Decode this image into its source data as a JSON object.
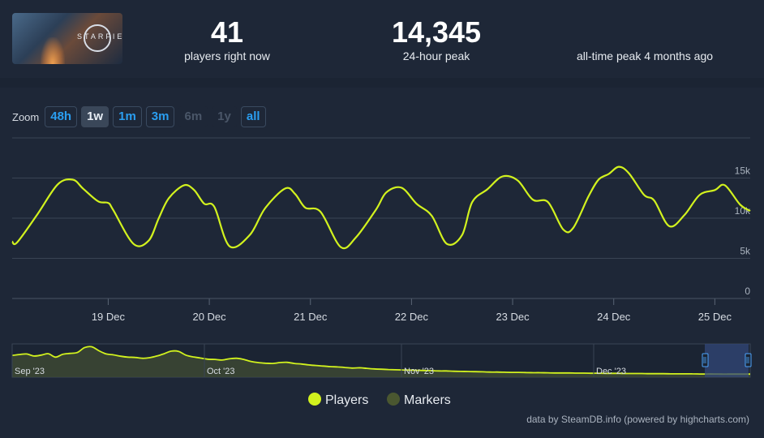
{
  "stats": {
    "now_value": "41",
    "now_label": "players right now",
    "peak24_value": "14,345",
    "peak24_label": "24-hour peak",
    "alltime_label": "all-time peak 4 months ago"
  },
  "game_thumbnail": {
    "brand": "STARFIELD"
  },
  "zoom": {
    "label": "Zoom",
    "buttons": [
      "48h",
      "1w",
      "1m",
      "3m",
      "6m",
      "1y",
      "all"
    ],
    "active": "1w",
    "disabled": [
      "6m",
      "1y"
    ]
  },
  "legend": {
    "players": "Players",
    "markers": "Markers"
  },
  "credit": "data by SteamDB.info (powered by highcharts.com)",
  "colors": {
    "players": "#d2f21e",
    "markers": "#4a5730",
    "navigator_fill": "#3f4a33",
    "selection": "#33477a"
  },
  "chart_data": {
    "type": "line",
    "series": [
      {
        "name": "Players",
        "x": [
          18.05,
          18.1,
          18.3,
          18.5,
          18.65,
          18.75,
          18.9,
          19.0,
          19.05,
          19.25,
          19.4,
          19.5,
          19.6,
          19.75,
          19.85,
          19.95,
          20.05,
          20.2,
          20.4,
          20.55,
          20.75,
          20.85,
          20.95,
          21.1,
          21.3,
          21.45,
          21.65,
          21.75,
          21.9,
          22.05,
          22.2,
          22.35,
          22.5,
          22.6,
          22.75,
          22.9,
          23.05,
          23.2,
          23.35,
          23.5,
          23.6,
          23.75,
          23.85,
          23.95,
          24.05,
          24.15,
          24.3,
          24.4,
          24.55,
          24.7,
          24.85,
          25.0,
          25.1,
          25.25,
          25.35
        ],
        "y": [
          7100,
          7000,
          10500,
          14200,
          14800,
          13700,
          12100,
          11900,
          11000,
          6800,
          7200,
          10000,
          12500,
          14100,
          13500,
          11800,
          11400,
          6500,
          7900,
          11200,
          13700,
          13000,
          11300,
          10800,
          6400,
          7600,
          11100,
          13200,
          13800,
          11800,
          10300,
          6800,
          7900,
          12000,
          13600,
          15200,
          14700,
          12300,
          12000,
          8600,
          8800,
          12700,
          14800,
          15500,
          16400,
          15600,
          12900,
          12200,
          9000,
          10400,
          12900,
          13500,
          14100,
          11700,
          10900
        ]
      }
    ],
    "y_ticks": [
      "0",
      "5k",
      "10k",
      "15k"
    ],
    "ylim": [
      0,
      20000
    ],
    "x_ticks": [
      "19 Dec",
      "20 Dec",
      "21 Dec",
      "22 Dec",
      "23 Dec",
      "24 Dec",
      "25 Dec"
    ],
    "xlim": [
      18.05,
      25.35
    ],
    "navigator": {
      "x_labels": [
        "Sep '23",
        "Oct '23",
        "Nov '23",
        "Dec '23"
      ],
      "y": [
        7.0,
        7.3,
        7.5,
        6.8,
        7.1,
        7.6,
        6.4,
        7.4,
        7.7,
        8.0,
        9.7,
        10.0,
        8.6,
        7.5,
        7.2,
        6.7,
        6.4,
        6.3,
        6.0,
        6.2,
        6.8,
        7.6,
        8.5,
        8.4,
        7.1,
        6.5,
        6.1,
        5.7,
        5.6,
        5.4,
        5.8,
        6.0,
        5.6,
        4.9,
        4.5,
        4.3,
        4.2,
        4.5,
        4.6,
        4.2,
        4.0,
        3.7,
        3.5,
        3.3,
        3.1,
        3.0,
        2.8,
        2.6,
        2.7,
        2.5,
        2.3,
        2.2,
        2.1,
        2.0,
        1.95,
        1.9,
        1.8,
        1.75,
        1.7,
        1.6,
        1.6,
        1.5,
        1.45,
        1.4,
        1.35,
        1.3,
        1.2,
        1.2,
        1.15,
        1.1,
        1.1,
        1.05,
        1.0,
        1.0,
        0.95,
        0.9,
        0.9,
        0.9,
        0.85,
        0.85,
        0.8,
        0.8,
        0.75,
        0.75,
        0.75,
        0.7,
        0.7,
        0.7,
        0.65,
        0.65,
        0.65,
        0.6,
        0.6,
        0.6,
        0.6,
        0.55,
        0.55,
        0.55,
        0.5,
        0.5,
        0.5,
        0.5,
        0.5
      ]
    }
  }
}
